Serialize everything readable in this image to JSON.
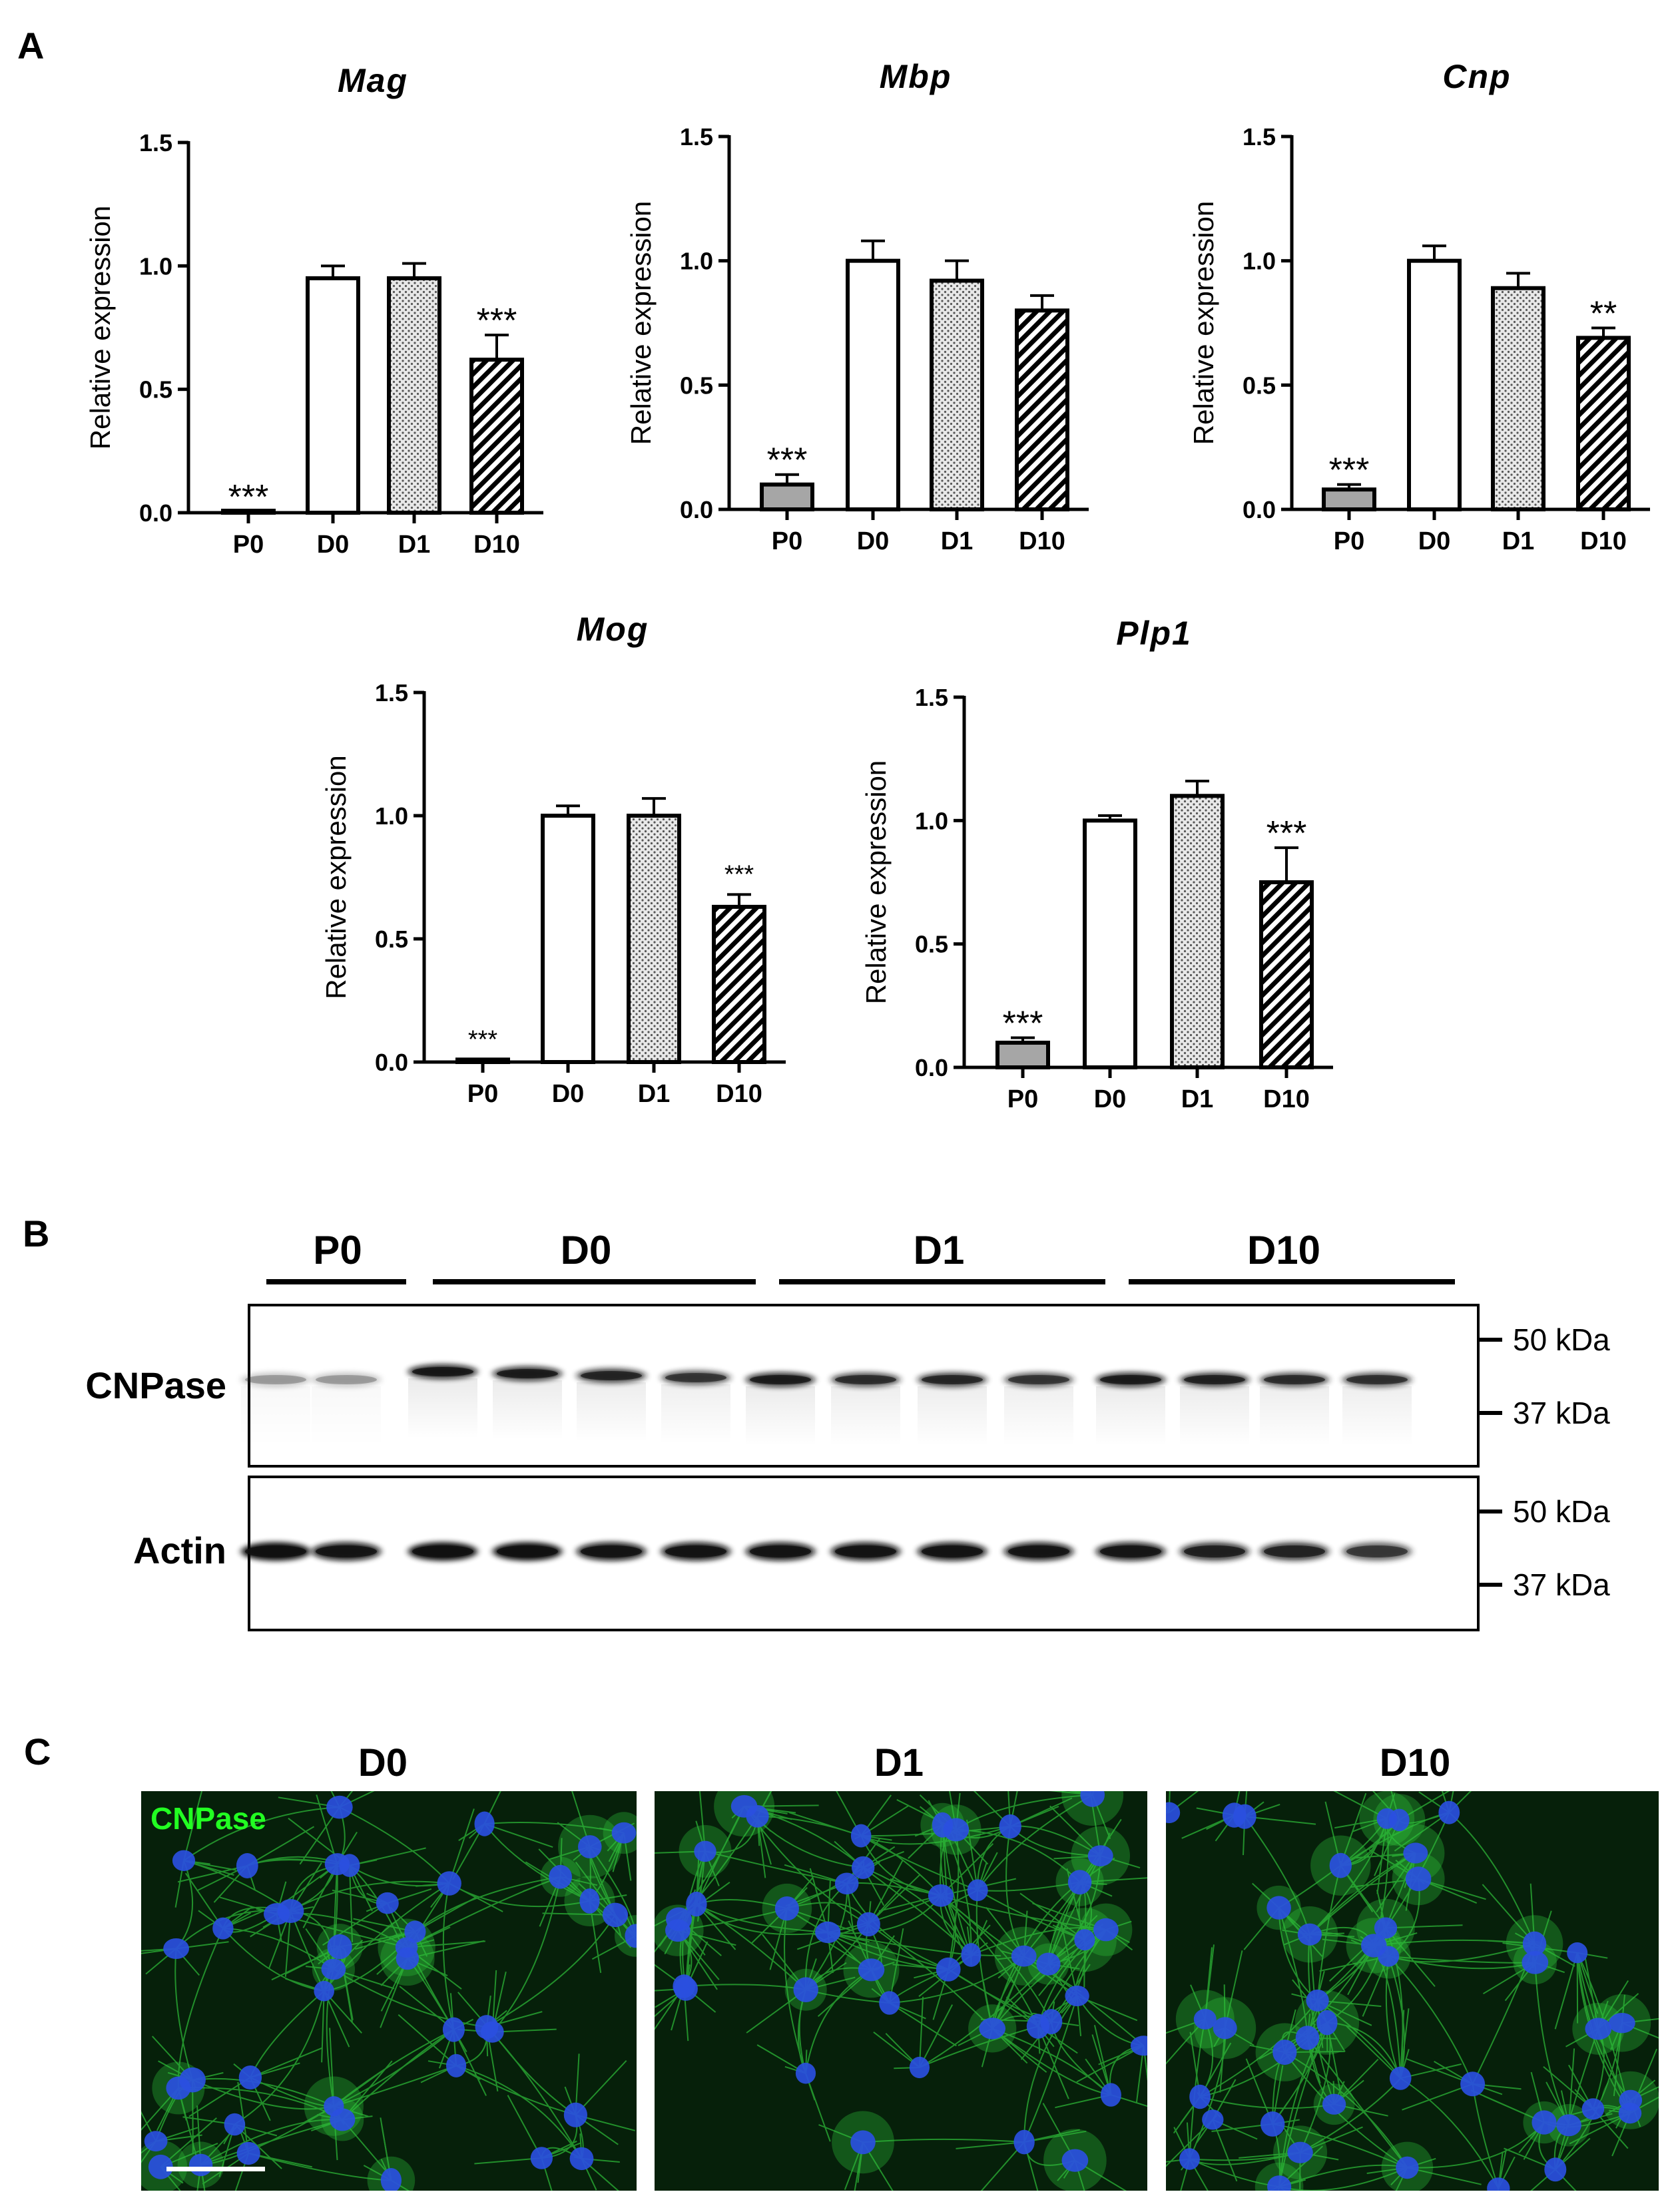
{
  "panels": {
    "a": "A",
    "b": "B",
    "c": "C"
  },
  "chart_data": [
    {
      "type": "bar",
      "title": "Mag",
      "ylabel": "Relative expression",
      "ylim": [
        0,
        1.5
      ],
      "yticks": [
        "0.0",
        "0.5",
        "1.0",
        "1.5"
      ],
      "categories": [
        "P0",
        "D0",
        "D1",
        "D10"
      ],
      "values": [
        0.005,
        0.95,
        0.95,
        0.62
      ],
      "errors": [
        0.0,
        0.05,
        0.06,
        0.1
      ],
      "annotations": [
        "***",
        "",
        "",
        "***"
      ]
    },
    {
      "type": "bar",
      "title": "Mbp",
      "ylabel": "Relative expression",
      "ylim": [
        0,
        1.5
      ],
      "yticks": [
        "0.0",
        "0.5",
        "1.0",
        "1.5"
      ],
      "categories": [
        "P0",
        "D0",
        "D1",
        "D10"
      ],
      "values": [
        0.1,
        1.0,
        0.92,
        0.8
      ],
      "errors": [
        0.04,
        0.08,
        0.08,
        0.06
      ],
      "annotations": [
        "***",
        "",
        "",
        ""
      ]
    },
    {
      "type": "bar",
      "title": "Cnp",
      "ylabel": "Relative expression",
      "ylim": [
        0,
        1.5
      ],
      "yticks": [
        "0.0",
        "0.5",
        "1.0",
        "1.5"
      ],
      "categories": [
        "P0",
        "D0",
        "D1",
        "D10"
      ],
      "values": [
        0.08,
        1.0,
        0.89,
        0.69
      ],
      "errors": [
        0.02,
        0.06,
        0.06,
        0.04
      ],
      "annotations": [
        "***",
        "",
        "",
        "**"
      ]
    },
    {
      "type": "bar",
      "title": "Mog",
      "ylabel": "Relative expression",
      "ylim": [
        0,
        1.5
      ],
      "yticks": [
        "0.0",
        "0.5",
        "1.0",
        "1.5"
      ],
      "categories": [
        "P0",
        "D0",
        "D1",
        "D10"
      ],
      "values": [
        0.01,
        1.0,
        1.0,
        0.63
      ],
      "errors": [
        0.0,
        0.04,
        0.07,
        0.05
      ],
      "annotations": [
        "***",
        "",
        "",
        "***"
      ]
    },
    {
      "type": "bar",
      "title": "Plp1",
      "ylabel": "Relative expression",
      "ylim": [
        0,
        1.5
      ],
      "yticks": [
        "0.0",
        "0.5",
        "1.0",
        "1.5"
      ],
      "categories": [
        "P0",
        "D0",
        "D1",
        "D10"
      ],
      "values": [
        0.1,
        1.0,
        1.1,
        0.75
      ],
      "errors": [
        0.02,
        0.02,
        0.06,
        0.14
      ],
      "annotations": [
        "***",
        "",
        "",
        "***"
      ]
    }
  ],
  "bar_styles": {
    "P0": "#a6a6a6",
    "D0": "#ffffff",
    "D1": "dots",
    "D10": "hatch"
  },
  "western_blot": {
    "groups": [
      "P0",
      "D0",
      "D1",
      "D10"
    ],
    "proteins": [
      "CNPase",
      "Actin"
    ],
    "markers": [
      "50 kDa",
      "37 kDa"
    ],
    "cnpase_band_intensity": [
      0.3,
      0.3,
      0.9,
      0.85,
      0.8,
      0.7,
      0.85,
      0.75,
      0.78,
      0.7,
      0.85,
      0.82,
      0.75,
      0.72
    ],
    "actin_band_intensity": [
      0.95,
      0.92,
      0.95,
      0.95,
      0.93,
      0.93,
      0.93,
      0.93,
      0.93,
      0.92,
      0.9,
      0.82,
      0.8,
      0.68
    ]
  },
  "microscopy": {
    "titles": [
      "D0",
      "D1",
      "D10"
    ],
    "stain_label": "CNPase",
    "colors": {
      "cell_process": "#2fbf3a",
      "nucleus": "#2a4fe0",
      "background": "#06200a"
    }
  }
}
